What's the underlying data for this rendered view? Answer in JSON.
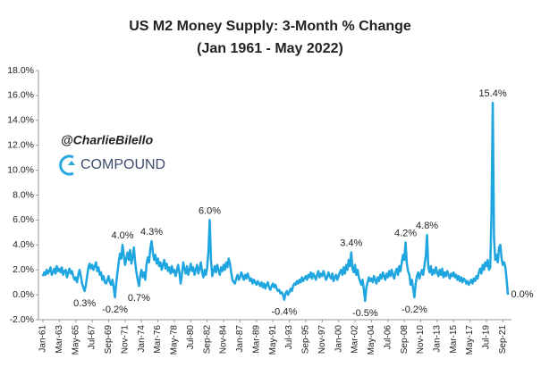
{
  "chart_data": {
    "type": "line",
    "title": "US M2 Money Supply: 3-Month % Change",
    "subtitle": "(Jan 1961 - May 2022)",
    "watermark": "@CharlieBilello",
    "brand": "COMPOUND",
    "ylim": [
      -2,
      18
    ],
    "yticks": [
      {
        "value": -2,
        "label": "-2.0%"
      },
      {
        "value": 0,
        "label": "0.0%"
      },
      {
        "value": 2,
        "label": "2.0%"
      },
      {
        "value": 4,
        "label": "4.0%"
      },
      {
        "value": 6,
        "label": "6.0%"
      },
      {
        "value": 8,
        "label": "8.0%"
      },
      {
        "value": 10,
        "label": "10.0%"
      },
      {
        "value": 12,
        "label": "12.0%"
      },
      {
        "value": 14,
        "label": "14.0%"
      },
      {
        "value": 16,
        "label": "16.0%"
      },
      {
        "value": 18,
        "label": "18.0%"
      }
    ],
    "grid": false,
    "categories": [
      "Jan-61",
      null,
      null,
      null,
      null,
      null,
      null,
      null,
      null,
      null,
      null,
      null,
      null,
      "Mar-63",
      null,
      null,
      null,
      null,
      null,
      null,
      null,
      null,
      null,
      null,
      null,
      null,
      "May-65",
      null,
      null,
      null,
      null,
      null,
      null,
      null,
      null,
      null,
      null,
      null,
      null,
      "Jul-67",
      null,
      null,
      null,
      null,
      null,
      null,
      null,
      null,
      null,
      null,
      null,
      null,
      "Sep-69",
      null,
      null,
      null,
      null,
      null,
      null,
      null,
      null,
      null,
      null,
      null,
      null,
      "Nov-71",
      null,
      null,
      null,
      null,
      null,
      null,
      null,
      null,
      null,
      null,
      null,
      null,
      "Jan-74",
      null,
      null,
      null,
      null,
      null,
      null,
      null,
      null,
      null,
      null,
      null,
      null,
      "Mar-76",
      null,
      null,
      null,
      null,
      null,
      null,
      null,
      null,
      null,
      null,
      null,
      null,
      "May-78",
      null,
      null,
      null,
      null,
      null,
      null,
      null,
      null,
      null,
      null,
      null,
      null,
      "Jul-80",
      null,
      null,
      null,
      null,
      null,
      null,
      null,
      null,
      null,
      null,
      null,
      null,
      "Sep-82",
      null,
      null,
      null,
      null,
      null,
      null,
      null,
      null,
      null,
      null,
      null,
      null,
      "Nov-84",
      null,
      null,
      null,
      null,
      null,
      null,
      null,
      null,
      null,
      null,
      null,
      null,
      "Jan-87",
      null,
      null,
      null,
      null,
      null,
      null,
      null,
      null,
      null,
      null,
      null,
      null,
      "Mar-89",
      null,
      null,
      null,
      null,
      null,
      null,
      null,
      null,
      null,
      null,
      null,
      null,
      "May-91",
      null,
      null,
      null,
      null,
      null,
      null,
      null,
      null,
      null,
      null,
      null,
      null,
      "Jul-93",
      null,
      null,
      null,
      null,
      null,
      null,
      null,
      null,
      null,
      null,
      null,
      null,
      "Sep-95",
      null,
      null,
      null,
      null,
      null,
      null,
      null,
      null,
      null,
      null,
      null,
      null,
      "Nov-97",
      null,
      null,
      null,
      null,
      null,
      null,
      null,
      null,
      null,
      null,
      null,
      null,
      "Jan-00",
      null,
      null,
      null,
      null,
      null,
      null,
      null,
      null,
      null,
      null,
      null,
      null,
      "Mar-02",
      null,
      null,
      null,
      null,
      null,
      null,
      null,
      null,
      null,
      null,
      null,
      null,
      "May-04",
      null,
      null,
      null,
      null,
      null,
      null,
      null,
      null,
      null,
      null,
      null,
      null,
      "Jul-06",
      null,
      null,
      null,
      null,
      null,
      null,
      null,
      null,
      null,
      null,
      null,
      null,
      "Sep-08",
      null,
      null,
      null,
      null,
      null,
      null,
      null,
      null,
      null,
      null,
      null,
      null,
      "Nov-10",
      null,
      null,
      null,
      null,
      null,
      null,
      null,
      null,
      null,
      null,
      null,
      null,
      "Jan-13",
      null,
      null,
      null,
      null,
      null,
      null,
      null,
      null,
      null,
      null,
      null,
      null,
      "Mar-15",
      null,
      null,
      null,
      null,
      null,
      null,
      null,
      null,
      null,
      null,
      null,
      null,
      "May-17",
      null,
      null,
      null,
      null,
      null,
      null,
      null,
      null,
      null,
      null,
      null,
      null,
      "Jul-19",
      null,
      null,
      null,
      null,
      null,
      null,
      null,
      null,
      null,
      null,
      null,
      null,
      "Sep-21",
      null,
      null,
      null,
      null
    ],
    "series": [
      {
        "name": "US M2 Money Supply: 3-Month % Change",
        "color": "#1fa5e0",
        "values": [
          1.5,
          1.8,
          1.6,
          2.0,
          1.7,
          1.9,
          2.2,
          1.6,
          1.8,
          2.1,
          1.7,
          2.3,
          1.9,
          2.1,
          1.8,
          2.2,
          1.6,
          1.9,
          2.0,
          1.4,
          1.8,
          2.1,
          1.7,
          1.9,
          1.5,
          1.2,
          1.4,
          1.0,
          1.6,
          2.0,
          1.5,
          0.9,
          0.6,
          0.3,
          0.8,
          1.5,
          2.2,
          2.5,
          2.1,
          2.4,
          2.0,
          2.3,
          2.6,
          1.9,
          2.2,
          1.6,
          1.8,
          1.2,
          1.5,
          1.0,
          0.9,
          1.2,
          1.5,
          1.0,
          0.8,
          1.2,
          0.6,
          -0.2,
          0.9,
          1.8,
          2.6,
          3.3,
          2.9,
          4.0,
          3.2,
          2.4,
          2.9,
          3.4,
          2.8,
          3.6,
          2.5,
          3.0,
          3.8,
          2.6,
          1.8,
          1.2,
          0.7,
          1.5,
          2.0,
          1.4,
          1.8,
          1.2,
          2.4,
          3.0,
          2.6,
          3.7,
          4.3,
          3.4,
          2.8,
          3.2,
          2.5,
          2.9,
          2.3,
          2.6,
          2.0,
          2.4,
          2.8,
          2.1,
          2.5,
          1.9,
          2.2,
          1.7,
          2.3,
          1.8,
          2.0,
          1.5,
          1.9,
          2.4,
          1.8,
          0.9,
          1.6,
          2.6,
          2.1,
          1.7,
          2.3,
          1.6,
          2.0,
          2.5,
          1.9,
          2.2,
          1.6,
          2.0,
          2.4,
          1.7,
          2.1,
          2.6,
          1.8,
          1.4,
          2.0,
          1.6,
          2.2,
          3.5,
          6.0,
          2.8,
          1.5,
          1.9,
          2.3,
          1.8,
          2.4,
          2.0,
          1.6,
          2.2,
          1.9,
          2.4,
          2.0,
          2.6,
          2.2,
          2.9,
          2.5,
          1.8,
          1.2,
          1.0,
          0.9,
          1.3,
          1.6,
          1.2,
          1.4,
          1.8,
          1.5,
          1.2,
          1.6,
          1.3,
          1.7,
          1.4,
          1.1,
          1.3,
          0.9,
          1.2,
          1.0,
          0.8,
          1.1,
          0.9,
          0.7,
          1.0,
          0.6,
          0.9,
          0.5,
          0.8,
          1.0,
          0.6,
          0.4,
          0.7,
          0.9,
          0.6,
          0.8,
          0.5,
          0.3,
          0.4,
          0.1,
          0.2,
          0.0,
          -0.4,
          0.1,
          0.3,
          0.0,
          0.2,
          0.5,
          0.3,
          0.7,
          0.9,
          0.8,
          1.1,
          0.9,
          1.2,
          1.0,
          1.4,
          1.1,
          1.3,
          1.5,
          1.2,
          1.6,
          1.4,
          1.8,
          1.3,
          1.7,
          1.5,
          1.2,
          1.6,
          1.9,
          1.4,
          1.7,
          1.5,
          1.9,
          1.6,
          1.2,
          1.4,
          1.8,
          1.5,
          1.3,
          1.7,
          1.1,
          1.4,
          1.6,
          1.2,
          1.5,
          1.8,
          2.0,
          1.6,
          2.2,
          1.7,
          2.4,
          2.0,
          2.8,
          2.3,
          3.4,
          2.1,
          1.8,
          2.4,
          1.6,
          2.0,
          1.4,
          1.1,
          0.8,
          1.2,
          0.4,
          -0.5,
          0.6,
          1.0,
          1.4,
          1.1,
          1.3,
          1.0,
          1.5,
          1.2,
          0.9,
          1.4,
          1.1,
          1.6,
          1.3,
          1.8,
          1.5,
          1.2,
          1.7,
          1.4,
          1.9,
          1.5,
          2.0,
          1.6,
          1.3,
          1.8,
          2.1,
          1.6,
          2.3,
          1.9,
          2.6,
          3.2,
          2.8,
          4.2,
          2.5,
          1.9,
          1.6,
          0.8,
          1.2,
          0.5,
          -0.2,
          0.9,
          1.5,
          1.8,
          1.3,
          1.7,
          2.0,
          1.6,
          2.4,
          3.1,
          4.8,
          2.2,
          1.8,
          2.3,
          1.6,
          2.0,
          1.7,
          2.2,
          1.8,
          1.5,
          2.0,
          1.6,
          2.1,
          1.4,
          1.8,
          1.5,
          1.9,
          1.6,
          1.3,
          1.7,
          1.5,
          1.8,
          1.4,
          1.6,
          1.2,
          1.5,
          1.1,
          1.4,
          1.0,
          1.3,
          1.2,
          0.9,
          1.1,
          0.8,
          1.0,
          1.2,
          0.9,
          1.3,
          1.1,
          1.5,
          1.3,
          1.8,
          2.1,
          1.7,
          2.4,
          2.0,
          2.6,
          2.3,
          2.8,
          2.0,
          2.2,
          6.5,
          15.4,
          4.5,
          2.8,
          3.2,
          2.6,
          3.8,
          4.0,
          2.9,
          2.4,
          2.6,
          2.2,
          1.2,
          0.0
        ]
      }
    ],
    "value_labels": {
      "33": "0.3%",
      "57": "-0.2%",
      "63": "4.0%",
      "76": "0.7%",
      "86": "4.3%",
      "132": "6.0%",
      "191": "-0.4%",
      "244": "3.4%",
      "255": "-0.5%",
      "287": "4.2%",
      "294": "-0.2%",
      "304": "4.8%",
      "356": "15.4%",
      "368": "0.0%"
    }
  }
}
